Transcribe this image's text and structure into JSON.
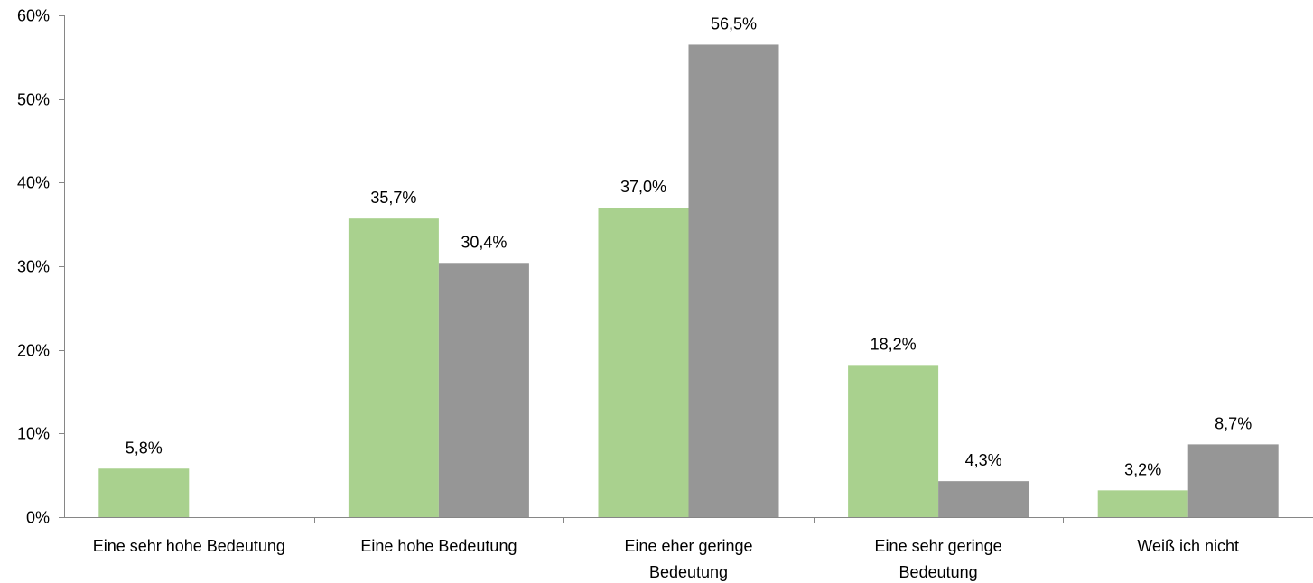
{
  "chart_data": {
    "type": "bar",
    "categories": [
      [
        "Eine sehr hohe Bedeutung"
      ],
      [
        "Eine hohe Bedeutung"
      ],
      [
        "Eine eher geringe",
        "Bedeutung"
      ],
      [
        "Eine sehr geringe",
        "Bedeutung"
      ],
      [
        "Weiß ich nicht"
      ]
    ],
    "series": [
      {
        "color": "#a9d18e",
        "values": [
          5.8,
          35.7,
          37.0,
          18.2,
          3.2
        ],
        "labels": [
          "5,8%",
          "35,7%",
          "37,0%",
          "18,2%",
          "3,2%"
        ]
      },
      {
        "color": "#969696",
        "values": [
          null,
          30.4,
          56.5,
          4.3,
          8.7
        ],
        "labels": [
          "",
          "30,4%",
          "56,5%",
          "4,3%",
          "8,7%"
        ]
      }
    ],
    "yticks": [
      "0%",
      "10%",
      "20%",
      "30%",
      "40%",
      "50%",
      "60%"
    ],
    "ylim": [
      0,
      60
    ],
    "grid": false,
    "legend": "none",
    "title": "",
    "xlabel": "",
    "ylabel": ""
  }
}
